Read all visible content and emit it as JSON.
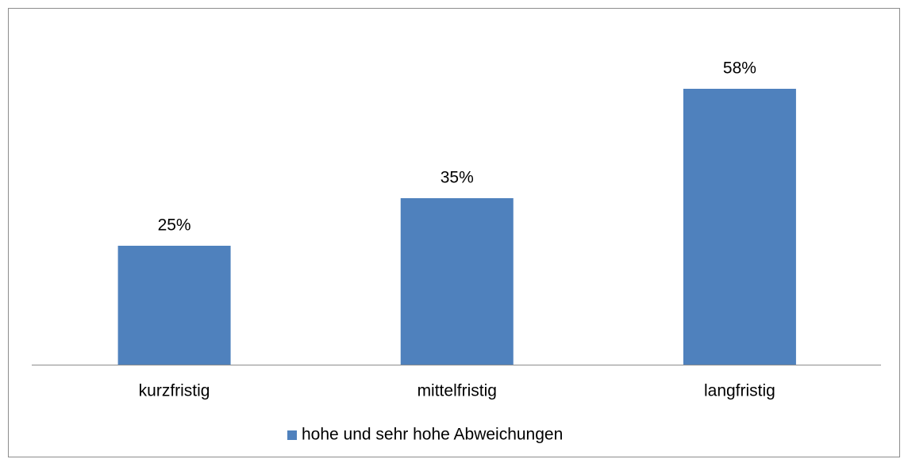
{
  "chart_data": {
    "type": "bar",
    "categories": [
      "kurzfristig",
      "mittelfristig",
      "langfristig"
    ],
    "series": [
      {
        "name": "hohe und sehr hohe Abweichungen",
        "color": "#4f81bd",
        "values": [
          25,
          35,
          58
        ],
        "value_labels": [
          "25%",
          "35%",
          "58%"
        ]
      }
    ],
    "legend": "bottom"
  }
}
